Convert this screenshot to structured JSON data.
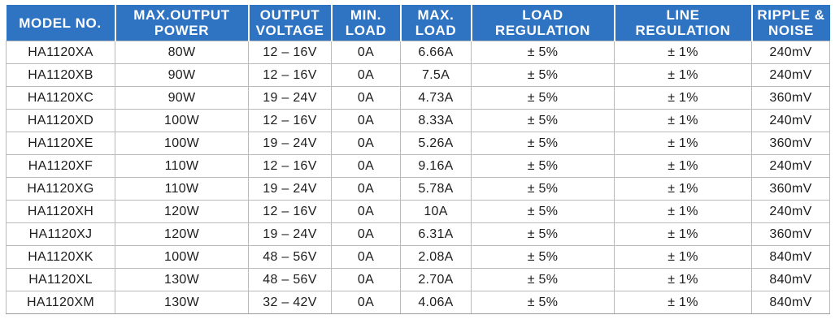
{
  "table": {
    "headers": [
      "MODEL NO.",
      "MAX.OUTPUT\nPOWER",
      "OUTPUT\nVOLTAGE",
      "MIN.\nLOAD",
      "MAX.\nLOAD",
      "LOAD\nREGULATION",
      "LINE\nREGULATION",
      "RIPPLE &\nNOISE"
    ],
    "rows": [
      [
        "HA1120XA",
        "80W",
        "12 – 16V",
        "0A",
        "6.66A",
        "± 5%",
        "± 1%",
        "240mV"
      ],
      [
        "HA1120XB",
        "90W",
        "12 – 16V",
        "0A",
        "7.5A",
        "± 5%",
        "± 1%",
        "240mV"
      ],
      [
        "HA1120XC",
        "90W",
        "19 – 24V",
        "0A",
        "4.73A",
        "± 5%",
        "± 1%",
        "360mV"
      ],
      [
        "HA1120XD",
        "100W",
        "12 – 16V",
        "0A",
        "8.33A",
        "± 5%",
        "± 1%",
        "240mV"
      ],
      [
        "HA1120XE",
        "100W",
        "19 – 24V",
        "0A",
        "5.26A",
        "± 5%",
        "± 1%",
        "360mV"
      ],
      [
        "HA1120XF",
        "110W",
        "12 – 16V",
        "0A",
        "9.16A",
        "± 5%",
        "± 1%",
        "240mV"
      ],
      [
        "HA1120XG",
        "110W",
        "19 – 24V",
        "0A",
        "5.78A",
        "± 5%",
        "± 1%",
        "360mV"
      ],
      [
        "HA1120XH",
        "120W",
        "12 – 16V",
        "0A",
        "10A",
        "± 5%",
        "± 1%",
        "240mV"
      ],
      [
        "HA1120XJ",
        "120W",
        "19 – 24V",
        "0A",
        "6.31A",
        "± 5%",
        "± 1%",
        "360mV"
      ],
      [
        "HA1120XK",
        "100W",
        "48 – 56V",
        "0A",
        "2.08A",
        "± 5%",
        "± 1%",
        "840mV"
      ],
      [
        "HA1120XL",
        "130W",
        "48 – 56V",
        "0A",
        "2.70A",
        "± 5%",
        "± 1%",
        "840mV"
      ],
      [
        "HA1120XM",
        "130W",
        "32 – 42V",
        "0A",
        "4.06A",
        "± 5%",
        "± 1%",
        "840mV"
      ]
    ]
  },
  "colors": {
    "header_background": "#2f74c2",
    "header_text": "#ffffff",
    "grid_line": "#b9b9b9",
    "cell_text": "#1c1c1c"
  }
}
